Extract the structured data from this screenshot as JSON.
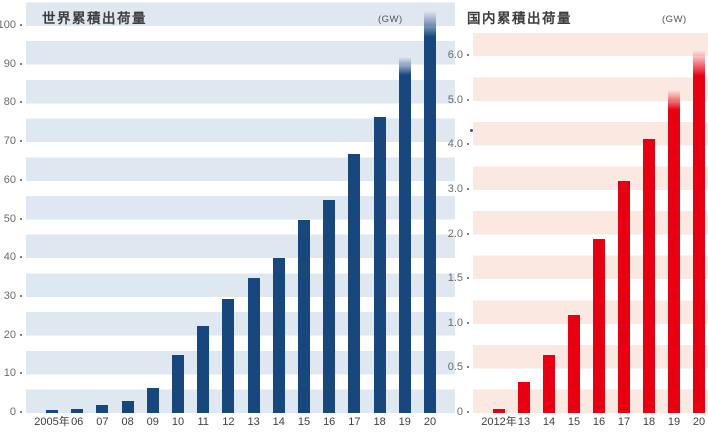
{
  "page": {
    "background": "#ffffff"
  },
  "chart_data": [
    {
      "type": "bar",
      "title": "世界累積出荷量",
      "unit_label": "(GW)",
      "unit": "GW",
      "categories": [
        "2005年",
        "06",
        "07",
        "08",
        "09",
        "10",
        "11",
        "12",
        "13",
        "14",
        "15",
        "16",
        "17",
        "18",
        "19",
        "20"
      ],
      "values": [
        0.7,
        1.1,
        2.2,
        3.2,
        6.5,
        15,
        22.5,
        29.5,
        35,
        40,
        50,
        55,
        67,
        76.5,
        92,
        104
      ],
      "fade_top_indices": [
        14,
        15
      ],
      "y_ticks": [
        "100",
        "90",
        "80",
        "70",
        "60",
        "50",
        "40",
        "30",
        "20",
        "10",
        "0"
      ],
      "y_tick_values": [
        100,
        90,
        80,
        70,
        60,
        50,
        40,
        30,
        20,
        10,
        0
      ],
      "ylim": [
        0,
        100
      ],
      "grid": "striped-horizontal",
      "legend": "none",
      "bar_color": "#17477d",
      "stripe_color": "#dfe7f1"
    },
    {
      "type": "bar",
      "title": "国内累積出荷量",
      "unit_label": "(GW)",
      "unit": "GW",
      "categories": [
        "2012年",
        "13",
        "14",
        "15",
        "16",
        "17",
        "18",
        "19",
        "20"
      ],
      "values": [
        0.05,
        0.35,
        0.65,
        1.1,
        1.95,
        3.2,
        4.15,
        5.25,
        6.15
      ],
      "fade_top_indices": [
        7,
        8
      ],
      "y_ticks": [
        "6.0",
        "5.0",
        "4.0",
        "3.0",
        "2.0",
        "1.5",
        "1.0",
        "0.5",
        "0"
      ],
      "y_tick_values": [
        6,
        5,
        4,
        3,
        2,
        1.5,
        1,
        0.5,
        0
      ],
      "ylim": [
        0,
        6
      ],
      "axis_note": "y ticks equally spaced: 0.5 steps up to 2.0, then 1.0 steps to 6.0",
      "grid": "striped-horizontal",
      "legend": "none",
      "bar_color": "#e60012",
      "stripe_color": "#fbe9e1"
    }
  ]
}
